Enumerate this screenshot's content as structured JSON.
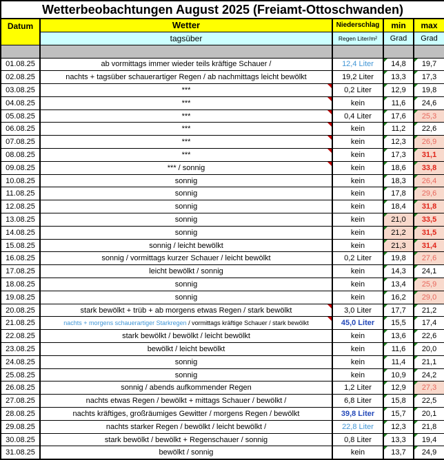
{
  "title": "Wetterbeobachtungen August 2025 (Freiamt-Ottoschwanden)",
  "header": {
    "datum": "Datum",
    "wetter": "Wetter",
    "niederschlag": "Niederschlag",
    "min": "min",
    "max": "max",
    "tagsueber": "tagsüber",
    "regen_unit": "Regen Liter/m²",
    "grad_min": "Grad",
    "grad_max": "Grad"
  },
  "colors": {
    "yellow": "#ffff00",
    "cyan": "#ccffff",
    "gray": "#bfbfbf",
    "pink": "#f8d9cc",
    "red": "#e8675c",
    "red-bold": "#e02318",
    "blue-light": "#4095d5",
    "blue-bold": "#2247b8",
    "green-tri": "#1e7e1e",
    "red-tri": "#c00000"
  },
  "rows": [
    {
      "date": "01.08.25",
      "weather": "ab vormittags immer wieder teils kräftige Schauer /",
      "rain": "12,4 Liter",
      "rain_style": "blue-light",
      "min": "14,8",
      "max": "19,7"
    },
    {
      "date": "02.08.25",
      "weather": "nachts + tagsüber schauerartiger Regen / ab nachmittags leicht bewölkt",
      "rain": "19,2 Liter",
      "min": "13,3",
      "max": "17,3"
    },
    {
      "date": "03.08.25",
      "weather": "***",
      "note": true,
      "rain": "0,2 Liter",
      "min": "12,9",
      "max": "19,8"
    },
    {
      "date": "04.08.25",
      "weather": "***",
      "note": true,
      "rain": "kein",
      "min": "11,6",
      "max": "24,6"
    },
    {
      "date": "05.08.25",
      "weather": "***",
      "note": true,
      "rain": "0,4 Liter",
      "min": "17,6",
      "max": "25,3",
      "max_style": "red"
    },
    {
      "date": "06.08.25",
      "weather": "***",
      "note": true,
      "rain": "kein",
      "min": "11,2",
      "max": "22,6"
    },
    {
      "date": "07.08.25",
      "weather": "***",
      "note": true,
      "rain": "kein",
      "min": "12,3",
      "max": "26,9",
      "max_style": "red"
    },
    {
      "date": "08.08.25",
      "weather": "***",
      "note": true,
      "rain": "kein",
      "min": "17,3",
      "max": "31,1",
      "max_style": "red-bold"
    },
    {
      "date": "09.08.25",
      "weather": "***  /  sonnig",
      "note": true,
      "rain": "kein",
      "min": "18,6",
      "max": "33,8",
      "max_style": "red-bold"
    },
    {
      "date": "10.08.25",
      "weather": "sonnig",
      "rain": "kein",
      "min": "18,3",
      "max": "26,4",
      "max_style": "red"
    },
    {
      "date": "11.08.25",
      "weather": "sonnig",
      "rain": "kein",
      "min": "17,8",
      "max": "29,6",
      "max_style": "red"
    },
    {
      "date": "12.08.25",
      "weather": "sonnig",
      "rain": "kein",
      "min": "18,4",
      "max": "31,8",
      "max_style": "red-bold"
    },
    {
      "date": "13.08.25",
      "weather": "sonnig",
      "rain": "kein",
      "min": "21,0",
      "min_hl": true,
      "max": "33,5",
      "max_style": "red-bold"
    },
    {
      "date": "14.08.25",
      "weather": "sonnig",
      "rain": "kein",
      "min": "21,2",
      "min_hl": true,
      "max": "31,5",
      "max_style": "red-bold"
    },
    {
      "date": "15.08.25",
      "weather": "sonnig  /  leicht bewölkt",
      "rain": "kein",
      "min": "21,3",
      "min_hl": true,
      "max": "31,4",
      "max_style": "red-bold"
    },
    {
      "date": "16.08.25",
      "weather": "sonnig  /  vormittags kurzer Schauer  /  leicht bewölkt",
      "rain": "0,2 Liter",
      "min": "19,8",
      "max": "27,6",
      "max_style": "red"
    },
    {
      "date": "17.08.25",
      "weather": "leicht bewölkt  /  sonnig",
      "rain": "kein",
      "min": "14,3",
      "max": "24,1"
    },
    {
      "date": "18.08.25",
      "weather": "sonnig",
      "rain": "kein",
      "min": "13,4",
      "max": "25,9",
      "max_style": "red"
    },
    {
      "date": "19.08.25",
      "weather": "sonnig",
      "rain": "kein",
      "min": "16,2",
      "max": "29,0",
      "max_style": "red"
    },
    {
      "date": "20.08.25",
      "weather": "stark bewölkt + trüb + ab morgens etwas Regen /  stark bewölkt",
      "note": true,
      "rain": "3,0 Liter",
      "min": "17,7",
      "max": "21,2"
    },
    {
      "date": "21.08.25",
      "weather_blue": "nachts + morgens schauerartiger Starkregen",
      "weather": " / vormittags kräftige Schauer / stark bewölkt",
      "small": true,
      "note": true,
      "rain": "45,0 Liter",
      "rain_style": "blue-bold",
      "min": "15,5",
      "max": "17,4"
    },
    {
      "date": "22.08.25",
      "weather": "stark bewölkt  /  bewölkt  /  leicht bewölkt",
      "rain": "kein",
      "min": "13,6",
      "max": "22,6"
    },
    {
      "date": "23.08.25",
      "weather": "bewölkt  /  leicht bewölkt",
      "rain": "kein",
      "min": "11,6",
      "max": "20,0"
    },
    {
      "date": "24.08.25",
      "weather": "sonnig",
      "rain": "kein",
      "min": "11,4",
      "max": "21,1"
    },
    {
      "date": "25.08.25",
      "weather": "sonnig",
      "rain": "kein",
      "min": "10,9",
      "max": "24,2"
    },
    {
      "date": "26.08.25",
      "weather": "sonnig  /  abends aufkommender Regen",
      "rain": "1,2 Liter",
      "min": "12,9",
      "max": "27,3",
      "max_style": "red"
    },
    {
      "date": "27.08.25",
      "weather": "nachts etwas Regen / bewölkt + mittags Schauer / bewölkt /",
      "rain": "6,8 Liter",
      "min": "15,8",
      "max": "22,5"
    },
    {
      "date": "28.08.25",
      "weather": "nachts kräftiges, großräumiges Gewitter  /  morgens Regen / bewölkt",
      "rain": "39,8 Liter",
      "rain_style": "blue-bold",
      "min": "15,7",
      "max": "20,1"
    },
    {
      "date": "29.08.25",
      "weather": "nachts starker Regen  /  bewölkt  /  leicht bewölkt /",
      "rain": "22,8 Liter",
      "rain_style": "blue-light",
      "min": "12,3",
      "max": "21,8"
    },
    {
      "date": "30.08.25",
      "weather": "stark bewölkt  /  bewölkt + Regenschauer  /  sonnig",
      "rain": "0,8 Liter",
      "min": "13,3",
      "max": "19,4"
    },
    {
      "date": "31.08.25",
      "weather": "bewölkt  /  sonnig",
      "rain": "kein",
      "min": "13,7",
      "max": "24,9"
    }
  ]
}
